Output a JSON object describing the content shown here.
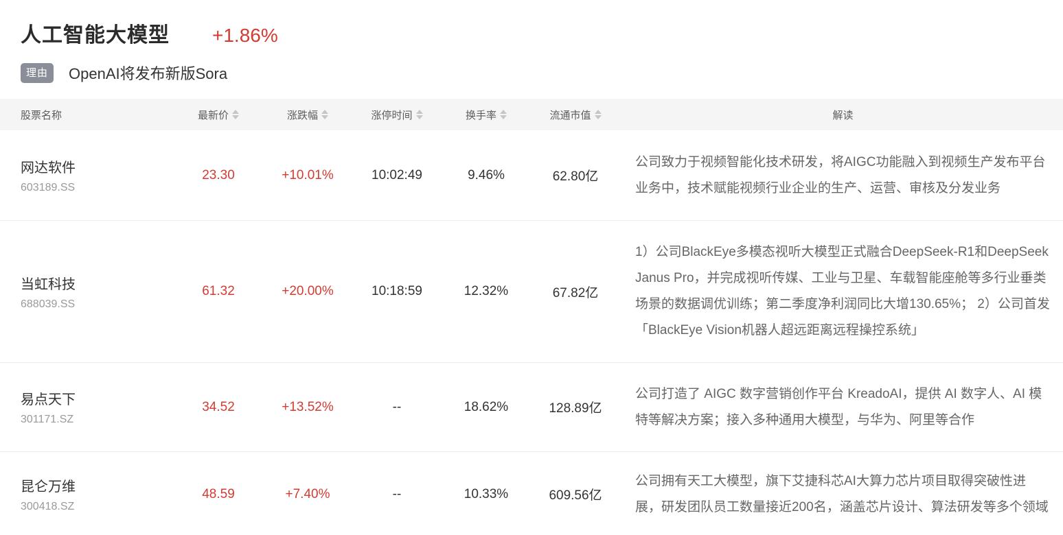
{
  "header": {
    "sector_name": "人工智能大模型",
    "sector_change": "+1.86%",
    "reason_label": "理由",
    "reason_text": "OpenAI将发布新版Sora"
  },
  "table": {
    "columns": {
      "name": "股票名称",
      "price": "最新价",
      "change": "涨跌幅",
      "limit_up_time": "涨停时间",
      "turnover": "换手率",
      "market_cap": "流通市值",
      "reading": "解读"
    },
    "rows": [
      {
        "name": "网达软件",
        "code": "603189.SS",
        "price": "23.30",
        "change": "+10.01%",
        "limit_up_time": "10:02:49",
        "turnover": "9.46%",
        "market_cap": "62.80亿",
        "reading": "公司致力于视频智能化技术研发，将AIGC功能融入到视频生产发布平台业务中，技术赋能视频行业企业的生产、运营、审核及分发业务"
      },
      {
        "name": "当虹科技",
        "code": "688039.SS",
        "price": "61.32",
        "change": "+20.00%",
        "limit_up_time": "10:18:59",
        "turnover": "12.32%",
        "market_cap": "67.82亿",
        "reading": "1）公司BlackEye多模态视听大模型正式融合DeepSeek-R1和DeepSeek Janus Pro，并完成视听传媒、工业与卫星、车载智能座舱等多行业垂类场景的数据调优训练；第二季度净利润同比大增130.65%； 2）公司首发「BlackEye Vision机器人超远距离远程操控系统」"
      },
      {
        "name": "易点天下",
        "code": "301171.SZ",
        "price": "34.52",
        "change": "+13.52%",
        "limit_up_time": "--",
        "turnover": "18.62%",
        "market_cap": "128.89亿",
        "reading": "公司打造了 AIGC 数字营销创作平台 KreadoAI，提供 AI 数字人、AI 模特等解决方案；接入多种通用大模型，与华为、阿里等合作"
      },
      {
        "name": "昆仑万维",
        "code": "300418.SZ",
        "price": "48.59",
        "change": "+7.40%",
        "limit_up_time": "--",
        "turnover": "10.33%",
        "market_cap": "609.56亿",
        "reading": "公司拥有天工大模型，旗下艾捷科芯AI大算力芯片项目取得突破性进展，研发团队员工数量接近200名，涵盖芯片设计、算法研发等多个领域"
      }
    ]
  },
  "colors": {
    "up_red": "#d43b31",
    "badge_gray": "#898e98",
    "header_bg": "#f5f5f5"
  }
}
